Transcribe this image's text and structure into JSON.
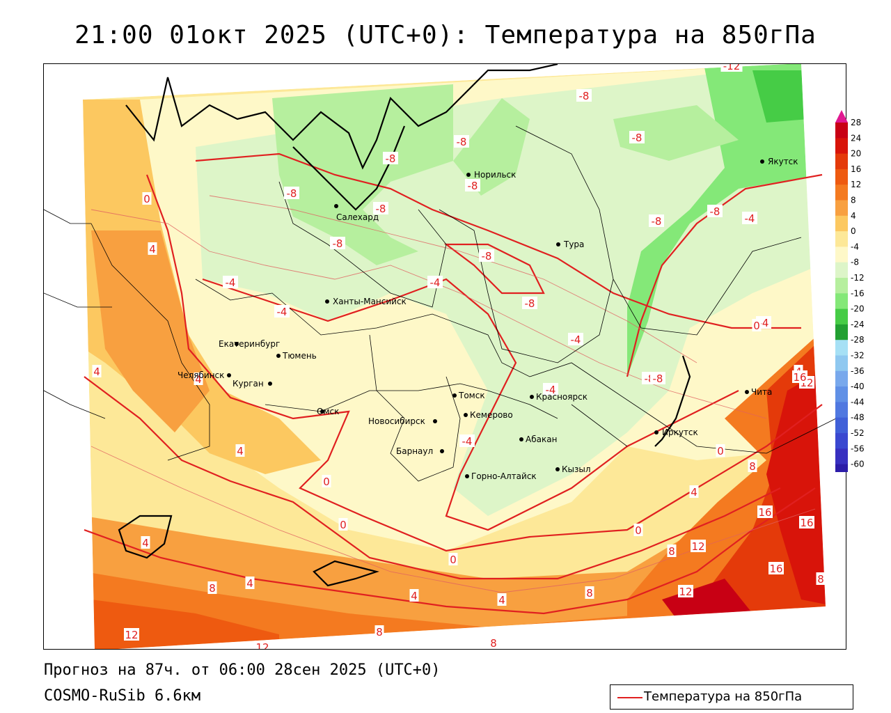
{
  "title": "21:00 01окт 2025 (UTC+0): Температура на 850гПа",
  "footer": {
    "forecast": "Прогноз на 87ч. от 06:00 28сен 2025 (UTC+0)",
    "model": "COSMO-RuSib 6.6км"
  },
  "legend": {
    "line_label": "Температура на 850гПа",
    "line_color": "#e02020"
  },
  "colorbar": {
    "labels": [
      "28",
      "24",
      "20",
      "16",
      "12",
      "8",
      "4",
      "0",
      "-4",
      "-8",
      "-12",
      "-16",
      "-20",
      "-24",
      "-28",
      "-32",
      "-36",
      "-40",
      "-44",
      "-48",
      "-52",
      "-56",
      "-60"
    ],
    "colors": [
      "#c80014",
      "#d8140a",
      "#e43a0a",
      "#ee5a10",
      "#f47a20",
      "#f8a040",
      "#fcc860",
      "#fde898",
      "#fef8c8",
      "#ddf5c8",
      "#b6ef9e",
      "#84e878",
      "#46cc46",
      "#22a032",
      "#a6e0f5",
      "#8fc8f0",
      "#78a8ec",
      "#6090e6",
      "#5078e0",
      "#4060d8",
      "#3a48d0",
      "#3830c0",
      "#2c1ca8"
    ]
  },
  "cities": [
    {
      "name": "Салехард"
    },
    {
      "name": "Норильск"
    },
    {
      "name": "Якутск"
    },
    {
      "name": "Тура"
    },
    {
      "name": "Ханты-Мансийск"
    },
    {
      "name": "Екатеринбург"
    },
    {
      "name": "Тюмень"
    },
    {
      "name": "Челябинск"
    },
    {
      "name": "Курган"
    },
    {
      "name": "Омск"
    },
    {
      "name": "Новосибирск"
    },
    {
      "name": "Томск"
    },
    {
      "name": "Кемерово"
    },
    {
      "name": "Красноярск"
    },
    {
      "name": "Барнаул"
    },
    {
      "name": "Абакан"
    },
    {
      "name": "Горно-Алтайск"
    },
    {
      "name": "Кызыл"
    },
    {
      "name": "Иркутск"
    },
    {
      "name": "Чита"
    }
  ],
  "isotherm_labels": [
    "-12",
    "-8",
    "-8",
    "-8",
    "-8",
    "-8",
    "-8",
    "-8",
    "-8",
    "-8",
    "-8",
    "-8",
    "-8",
    "-8",
    "-8",
    "-4",
    "-4",
    "-4",
    "-4",
    "-4",
    "-4",
    "-4",
    "-4",
    "0",
    "0",
    "0",
    "0",
    "0",
    "0",
    "0",
    "4",
    "4",
    "4",
    "4",
    "4",
    "4",
    "4",
    "4",
    "4",
    "4",
    "8",
    "8",
    "8",
    "8",
    "8",
    "8",
    "8",
    "12",
    "12",
    "12",
    "12",
    "12",
    "16",
    "16",
    "16",
    "16"
  ]
}
